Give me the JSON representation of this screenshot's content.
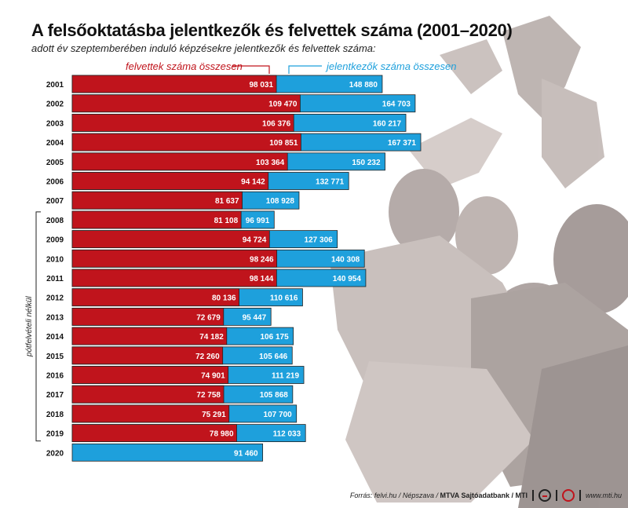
{
  "header": {
    "title": "A felsőoktatásba jelentkezők és felvettek száma (2001–2020)",
    "subtitle": "adott év szeptemberében induló képzésekre jelentkezők és felvettek száma:"
  },
  "legend": {
    "red_label": "felvettek száma összesen",
    "blue_label": "jelentkezők száma összesen"
  },
  "bracket_label": "pótfelvételi nélkül",
  "footer": {
    "source_prefix": "Forrás: felvi.hu / Népszava /",
    "source_bold": "MTVA Sajtóadatbank / MTI",
    "logo1": "MTI",
    "logo2": "MTVA",
    "website": "www.mti.hu"
  },
  "colors": {
    "admitted": "#c0141c",
    "applicants": "#1ea0dc",
    "title": "#111111"
  },
  "chart_data": {
    "type": "bar",
    "orientation": "horizontal",
    "stacking": "overlay",
    "categories": [
      "2001",
      "2002",
      "2003",
      "2004",
      "2005",
      "2006",
      "2007",
      "2008",
      "2009",
      "2010",
      "2011",
      "2012",
      "2013",
      "2014",
      "2015",
      "2016",
      "2017",
      "2018",
      "2019",
      "2020"
    ],
    "series": [
      {
        "name": "felvettek száma összesen",
        "values": [
          98031,
          109470,
          106376,
          109851,
          103364,
          94142,
          81637,
          81108,
          94724,
          98246,
          98144,
          80136,
          72679,
          74182,
          72260,
          74901,
          72758,
          75291,
          78980,
          null
        ],
        "labels": [
          "98 031",
          "109 470",
          "106 376",
          "109 851",
          "103 364",
          "94 142",
          "81 637",
          "81 108",
          "94 724",
          "98 246",
          "98 144",
          "80 136",
          "72 679",
          "74 182",
          "72 260",
          "74 901",
          "72 758",
          "75 291",
          "78 980",
          ""
        ]
      },
      {
        "name": "jelentkezők száma összesen",
        "values": [
          148880,
          164703,
          160217,
          167371,
          150232,
          132771,
          108928,
          96991,
          127306,
          140308,
          140954,
          110616,
          95447,
          106175,
          105646,
          111219,
          105868,
          107700,
          112033,
          91460
        ],
        "labels": [
          "148 880",
          "164 703",
          "160 217",
          "167 371",
          "150 232",
          "132 771",
          "108 928",
          "96 991",
          "127 306",
          "140 308",
          "140 954",
          "110 616",
          "95 447",
          "106 175",
          "105 646",
          "111 219",
          "105 868",
          "107 700",
          "112 033",
          "91 460"
        ]
      }
    ],
    "bracket": {
      "from": "2008",
      "to": "2019"
    },
    "xlim": [
      0,
      170000
    ],
    "grid": false
  }
}
